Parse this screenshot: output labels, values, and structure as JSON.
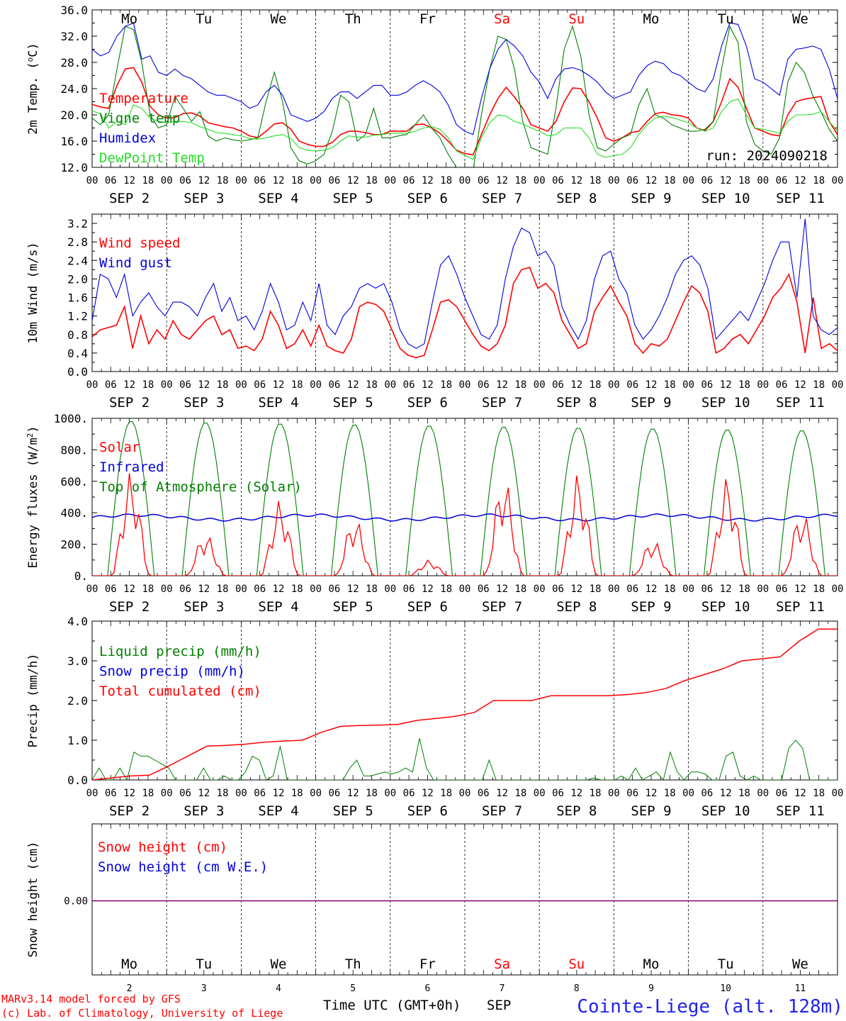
{
  "colors": {
    "red": "#ff0000",
    "green": "#008000",
    "blue": "#0000dd",
    "lime": "#22dd22",
    "purple": "#7f007f",
    "axis": "#000000"
  },
  "days": {
    "names": [
      "Mo",
      "Tu",
      "We",
      "Th",
      "Fr",
      "Sa",
      "Su",
      "Mo",
      "Tu",
      "We"
    ],
    "name_colors": [
      "#000000",
      "#000000",
      "#000000",
      "#000000",
      "#000000",
      "#ff0000",
      "#ff0000",
      "#000000",
      "#000000",
      "#000000"
    ],
    "month": "SEP",
    "numbers": [
      "2",
      "3",
      "4",
      "5",
      "6",
      "7",
      "8",
      "9",
      "10",
      "11"
    ],
    "hour_ticks": [
      "00",
      "06",
      "12",
      "18"
    ],
    "last_tick": "00"
  },
  "run_label": "run: 2024090218",
  "footer": {
    "model": "MARv3.14 model forced by GFS",
    "credit": "(c) Lab. of Climatology, University of Liege",
    "time_label": "Time UTC (GMT+0h)",
    "month": "SEP",
    "station": "Cointe-Liege (alt. 128m)"
  },
  "chart_data": [
    {
      "type": "line",
      "ylabel_html": "2m Temp. (<tspan baseline-shift='super' font-size='11'>o</tspan>C)",
      "ylabel": "2m Temp. (oC)",
      "ylim": [
        12,
        36
      ],
      "yticks": [
        "12.0",
        "16.0",
        "20.0",
        "24.0",
        "28.0",
        "32.0",
        "36.0"
      ],
      "ytick_values": [
        12,
        16,
        20,
        24,
        28,
        32,
        36
      ],
      "x": "hours since 00 UTC SEP 2, every 3h, 0..240",
      "series": [
        {
          "name": "Temperature",
          "color": "#ff0000",
          "values": [
            21.6,
            21.2,
            21.0,
            24.5,
            27.0,
            27.2,
            25.0,
            21.3,
            20.0,
            19.5,
            19.6,
            20.2,
            20.3,
            19.8,
            18.8,
            18.5,
            18.2,
            18.0,
            17.5,
            16.8,
            16.5,
            17.5,
            18.6,
            18.8,
            17.8,
            16.0,
            15.5,
            15.2,
            15.2,
            15.8,
            17.0,
            17.5,
            17.5,
            17.3,
            17.0,
            17.0,
            17.5,
            17.5,
            17.5,
            18.5,
            18.6,
            18.0,
            17.2,
            16.0,
            14.6,
            14.1,
            13.9,
            17.0,
            20.0,
            22.5,
            24.2,
            22.7,
            21.0,
            18.5,
            18.0,
            17.5,
            19.0,
            22.0,
            24.1,
            24.0,
            22.0,
            19.5,
            16.5,
            16.0,
            16.5,
            17.3,
            17.5,
            19.0,
            20.2,
            20.4,
            20.0,
            19.9,
            19.5,
            18.0,
            17.6,
            19.0,
            22.0,
            25.5,
            24.2,
            21.0,
            18.0,
            17.5,
            17.0,
            16.8,
            20.0,
            22.0,
            22.4,
            22.6,
            22.8,
            19.0,
            17.0
          ]
        },
        {
          "name": "Vigne temp",
          "color": "#008000",
          "values": [
            19.5,
            18.5,
            20.0,
            27.0,
            33.5,
            33.0,
            28.0,
            20.0,
            18.0,
            18.5,
            22.8,
            21.0,
            19.0,
            20.5,
            16.8,
            16.0,
            16.5,
            16.2,
            16.0,
            16.2,
            16.5,
            22.0,
            26.5,
            22.0,
            15.0,
            13.0,
            12.5,
            13.0,
            14.0,
            17.5,
            23.0,
            22.0,
            16.0,
            17.0,
            21.0,
            16.5,
            16.5,
            16.8,
            17.0,
            18.5,
            20.0,
            18.0,
            16.5,
            14.0,
            12.0,
            11.5,
            11.5,
            20.0,
            27.0,
            32.0,
            31.5,
            27.0,
            19.0,
            15.0,
            14.5,
            14.0,
            21.0,
            30.0,
            33.5,
            29.0,
            20.0,
            15.0,
            14.5,
            15.5,
            16.5,
            17.0,
            21.5,
            24.0,
            20.0,
            19.5,
            18.5,
            18.0,
            17.5,
            17.5,
            17.8,
            19.0,
            27.0,
            33.5,
            31.0,
            19.0,
            15.5,
            14.5,
            14.0,
            16.5,
            25.0,
            28.0,
            26.5,
            23.0,
            20.5,
            17.8,
            16.0
          ]
        },
        {
          "name": "Humidex",
          "color": "#0000dd",
          "values": [
            30.0,
            29.0,
            29.5,
            32.0,
            33.5,
            34.0,
            28.5,
            29.0,
            26.5,
            26.0,
            27.0,
            26.0,
            25.5,
            24.5,
            23.5,
            23.0,
            23.0,
            22.5,
            22.0,
            21.0,
            21.5,
            23.5,
            24.5,
            23.0,
            20.0,
            19.5,
            19.0,
            19.5,
            20.5,
            22.5,
            23.5,
            23.5,
            22.5,
            23.5,
            24.5,
            24.5,
            23.0,
            23.0,
            23.5,
            24.5,
            25.2,
            24.5,
            23.5,
            21.5,
            18.5,
            17.5,
            17.0,
            22.5,
            27.0,
            30.0,
            31.5,
            30.5,
            29.0,
            26.5,
            25.0,
            22.5,
            25.5,
            27.0,
            27.2,
            26.8,
            26.0,
            25.0,
            23.5,
            22.5,
            23.0,
            23.5,
            26.0,
            27.5,
            28.2,
            27.8,
            26.5,
            26.0,
            25.0,
            24.0,
            23.5,
            25.5,
            30.5,
            34.0,
            33.8,
            30.5,
            25.5,
            25.0,
            24.0,
            23.0,
            28.5,
            30.0,
            30.2,
            30.5,
            30.0,
            27.0,
            22.5
          ]
        },
        {
          "name": "DewPoint Temp",
          "color": "#22dd22",
          "values": [
            20.6,
            20.2,
            18.0,
            19.0,
            18.5,
            21.5,
            21.0,
            19.5,
            19.0,
            18.8,
            19.0,
            19.0,
            18.8,
            18.2,
            17.8,
            17.3,
            17.2,
            17.0,
            16.8,
            16.4,
            16.3,
            16.5,
            16.8,
            17.0,
            16.4,
            15.0,
            14.6,
            14.5,
            14.6,
            15.0,
            16.0,
            16.8,
            16.6,
            16.6,
            16.9,
            17.0,
            17.2,
            17.2,
            17.2,
            17.5,
            18.0,
            18.2,
            17.8,
            16.5,
            14.5,
            13.8,
            13.2,
            16.5,
            18.8,
            20.0,
            19.8,
            19.0,
            18.6,
            18.0,
            17.5,
            16.8,
            17.0,
            18.0,
            18.0,
            18.0,
            16.5,
            14.0,
            13.5,
            13.8,
            14.0,
            15.0,
            17.0,
            18.5,
            19.5,
            19.8,
            19.6,
            19.2,
            18.8,
            18.0,
            17.5,
            18.0,
            20.5,
            22.0,
            22.4,
            20.0,
            18.0,
            17.8,
            17.5,
            17.2,
            19.0,
            20.0,
            20.0,
            20.1,
            20.5,
            19.0,
            17.5
          ]
        }
      ]
    },
    {
      "type": "line",
      "ylabel": "10m Wind (m/s)",
      "ylim": [
        0,
        3.4
      ],
      "yticks": [
        "0.0",
        "0.4",
        "0.8",
        "1.2",
        "1.6",
        "2.0",
        "2.4",
        "2.8",
        "3.2"
      ],
      "ytick_values": [
        0,
        0.4,
        0.8,
        1.2,
        1.6,
        2.0,
        2.4,
        2.8,
        3.2
      ],
      "series": [
        {
          "name": "Wind speed",
          "color": "#ff0000",
          "values": [
            0.75,
            0.9,
            0.95,
            1.0,
            1.4,
            0.5,
            1.2,
            0.6,
            0.9,
            0.7,
            1.1,
            0.8,
            0.7,
            0.9,
            1.1,
            1.2,
            0.8,
            0.9,
            0.5,
            0.55,
            0.45,
            0.7,
            1.3,
            1.0,
            0.5,
            0.6,
            0.9,
            0.55,
            1.0,
            0.55,
            0.45,
            0.4,
            0.7,
            1.4,
            1.5,
            1.45,
            1.3,
            0.9,
            0.5,
            0.35,
            0.3,
            0.35,
            0.9,
            1.5,
            1.55,
            1.4,
            1.1,
            0.8,
            0.55,
            0.45,
            0.6,
            1.0,
            1.9,
            2.2,
            2.25,
            1.8,
            1.9,
            1.7,
            1.1,
            0.8,
            0.5,
            0.6,
            1.3,
            1.6,
            1.85,
            1.5,
            1.2,
            0.6,
            0.4,
            0.6,
            0.55,
            0.7,
            1.1,
            1.5,
            1.85,
            1.7,
            1.3,
            0.4,
            0.5,
            0.7,
            0.8,
            0.6,
            0.9,
            1.2,
            1.6,
            1.8,
            2.1,
            1.5,
            0.4,
            1.6,
            0.5,
            0.6,
            0.45
          ]
        },
        {
          "name": "Wind gust",
          "color": "#0000dd",
          "values": [
            1.1,
            2.1,
            2.0,
            1.6,
            2.1,
            1.2,
            1.5,
            1.7,
            1.4,
            1.2,
            1.5,
            1.5,
            1.4,
            1.2,
            1.6,
            1.9,
            1.3,
            1.6,
            1.1,
            1.2,
            0.9,
            1.3,
            1.9,
            1.5,
            0.9,
            1.0,
            1.5,
            1.1,
            1.9,
            1.0,
            0.8,
            1.2,
            1.4,
            1.8,
            1.9,
            1.8,
            1.9,
            1.5,
            0.9,
            0.6,
            0.5,
            0.6,
            1.5,
            2.3,
            2.5,
            2.1,
            1.6,
            1.2,
            0.8,
            0.7,
            1.0,
            2.0,
            2.7,
            3.1,
            3.0,
            2.5,
            2.6,
            2.3,
            1.4,
            1.0,
            0.7,
            1.1,
            2.0,
            2.5,
            2.6,
            2.0,
            1.7,
            1.0,
            0.7,
            0.9,
            1.2,
            1.6,
            2.1,
            2.4,
            2.5,
            2.3,
            1.8,
            0.7,
            0.9,
            1.1,
            1.3,
            1.1,
            1.5,
            1.9,
            2.4,
            2.8,
            2.8,
            1.6,
            3.3,
            1.2,
            0.9,
            0.8,
            0.95
          ]
        }
      ]
    },
    {
      "type": "line",
      "ylabel_html": "Energy fluxes (W/m<tspan baseline-shift='super' font-size='11'>2</tspan>)",
      "ylabel": "Energy fluxes (W/m2)",
      "ylim": [
        0,
        1000
      ],
      "yticks": [
        "0.",
        "200.",
        "400.",
        "600.",
        "800.",
        "1000."
      ],
      "ytick_values": [
        0,
        200,
        400,
        600,
        800,
        1000
      ],
      "series": [
        {
          "name": "Solar",
          "color": "#ff0000"
        },
        {
          "name": "Infrared",
          "color": "#0000dd"
        },
        {
          "name": "Top of Atmosphere (Solar)",
          "color": "#008000"
        }
      ],
      "toa_peaks": [
        985,
        975,
        968,
        962,
        955,
        948,
        942,
        936,
        930,
        925
      ],
      "solar_peaks": [
        660,
        270,
        480,
        370,
        100,
        630,
        650,
        230,
        630,
        410
      ],
      "infrared_level": 370
    },
    {
      "type": "line",
      "ylabel": "Precip (mm/h)",
      "ylim": [
        0,
        4.0
      ],
      "yticks": [
        "0.0",
        "1.0",
        "2.0",
        "3.0",
        "4.0"
      ],
      "ytick_values": [
        0,
        1,
        2,
        3,
        4
      ],
      "series": [
        {
          "name": "Liquid precip (mm/h)",
          "color": "#008000",
          "values": [
            0.0,
            0.3,
            0.0,
            0.0,
            0.3,
            0.0,
            0.7,
            0.6,
            0.6,
            0.5,
            0.4,
            0.3,
            0.0,
            0.0,
            0.0,
            0.0,
            0.3,
            0.0,
            0.0,
            0.1,
            0.0,
            0.0,
            0.2,
            0.6,
            0.5,
            0.0,
            0.1,
            0.85,
            0.0,
            0.0,
            0.0,
            0.0,
            0.0,
            0.0,
            0.0,
            0.0,
            0.0,
            0.3,
            0.5,
            0.1,
            0.1,
            0.15,
            0.2,
            0.15,
            0.2,
            0.3,
            0.2,
            1.05,
            0.3,
            0.0,
            0.0,
            0.0,
            0.0,
            0.0,
            0.0,
            0.0,
            0.0,
            0.5,
            0.0,
            0.0,
            0.0,
            0.0,
            0.0,
            0.0,
            0.0,
            0.0,
            0.0,
            0.0,
            0.0,
            0.0,
            0.0,
            0.0,
            0.05,
            0.0,
            0.0,
            0.0,
            0.1,
            0.0,
            0.3,
            0.0,
            0.1,
            0.2,
            0.0,
            0.7,
            0.2,
            0.0,
            0.2,
            0.2,
            0.15,
            0.0,
            0.0,
            0.6,
            0.7,
            0.1,
            0.0,
            0.1,
            0.0,
            0.0,
            0.0,
            0.0,
            0.8,
            1.0,
            0.8,
            0.0,
            0.0,
            0.0,
            0.0,
            0.0
          ]
        },
        {
          "name": "Snow precip (mm/h)",
          "color": "#0000dd",
          "values": []
        },
        {
          "name": "Total cumulated (cm)",
          "color": "#ff0000",
          "values": [
            0.0,
            0.05,
            0.1,
            0.12,
            0.35,
            0.6,
            0.85,
            0.87,
            0.9,
            0.95,
            0.98,
            1.0,
            1.2,
            1.35,
            1.37,
            1.38,
            1.4,
            1.5,
            1.55,
            1.6,
            1.7,
            2.0,
            2.0,
            2.0,
            2.12,
            2.12,
            2.12,
            2.12,
            2.15,
            2.2,
            2.3,
            2.5,
            2.65,
            2.8,
            3.0,
            3.05,
            3.1,
            3.5,
            3.8,
            3.8
          ]
        }
      ]
    },
    {
      "type": "line",
      "ylabel": "Snow height (cm)",
      "yticks": [
        "0.00"
      ],
      "ytick_values": [
        0
      ],
      "series": [
        {
          "name": "Snow height (cm)",
          "color": "#ff0000",
          "values": [
            0
          ]
        },
        {
          "name": "Snow height (cm W.E.)",
          "color": "#0000dd",
          "values": [
            0
          ]
        }
      ]
    }
  ]
}
